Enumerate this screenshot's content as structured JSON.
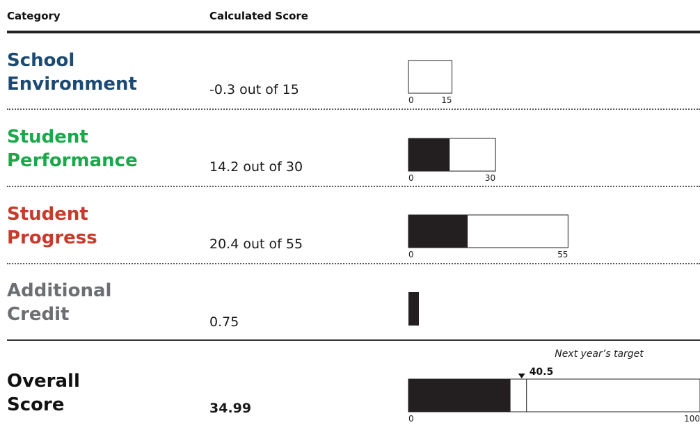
{
  "header": {
    "category": "Category",
    "calculated_score": "Calculated Score"
  },
  "categories": [
    {
      "line1": "School",
      "line2": "Environment",
      "score_text": "-0.3 out of 15",
      "color": "#1c4a72"
    },
    {
      "line1": "Student",
      "line2": "Performance",
      "score_text": "14.2 out of 30",
      "color": "#1aa84a"
    },
    {
      "line1": "Student",
      "line2": "Progress",
      "score_text": "20.4 out of 55",
      "color": "#c63b2c"
    },
    {
      "line1": "Additional",
      "line2": "Credit",
      "score_text": "0.75",
      "color": "#6d6e71"
    }
  ],
  "overall": {
    "line1": "Overall",
    "line2": "Score",
    "score_text": "34.99",
    "color": "#111111"
  },
  "target": {
    "caption": "Next year’s target",
    "value_label": "40.5",
    "value": 40.5
  },
  "chart_data": {
    "type": "bar",
    "orientation": "horizontal",
    "categories": [
      "School Environment",
      "Student Performance",
      "Student Progress",
      "Additional Credit",
      "Overall Score"
    ],
    "values": [
      -0.3,
      14.2,
      20.4,
      0.75,
      34.99
    ],
    "maximums": [
      15,
      30,
      55,
      null,
      100
    ],
    "tick_labels": [
      [
        "0",
        "15"
      ],
      [
        "0",
        "30"
      ],
      [
        "0",
        "55"
      ],
      [],
      [
        "0",
        "100"
      ]
    ],
    "bar_color": "#231f20",
    "target_marker": {
      "category": "Overall Score",
      "value": 40.5
    }
  }
}
